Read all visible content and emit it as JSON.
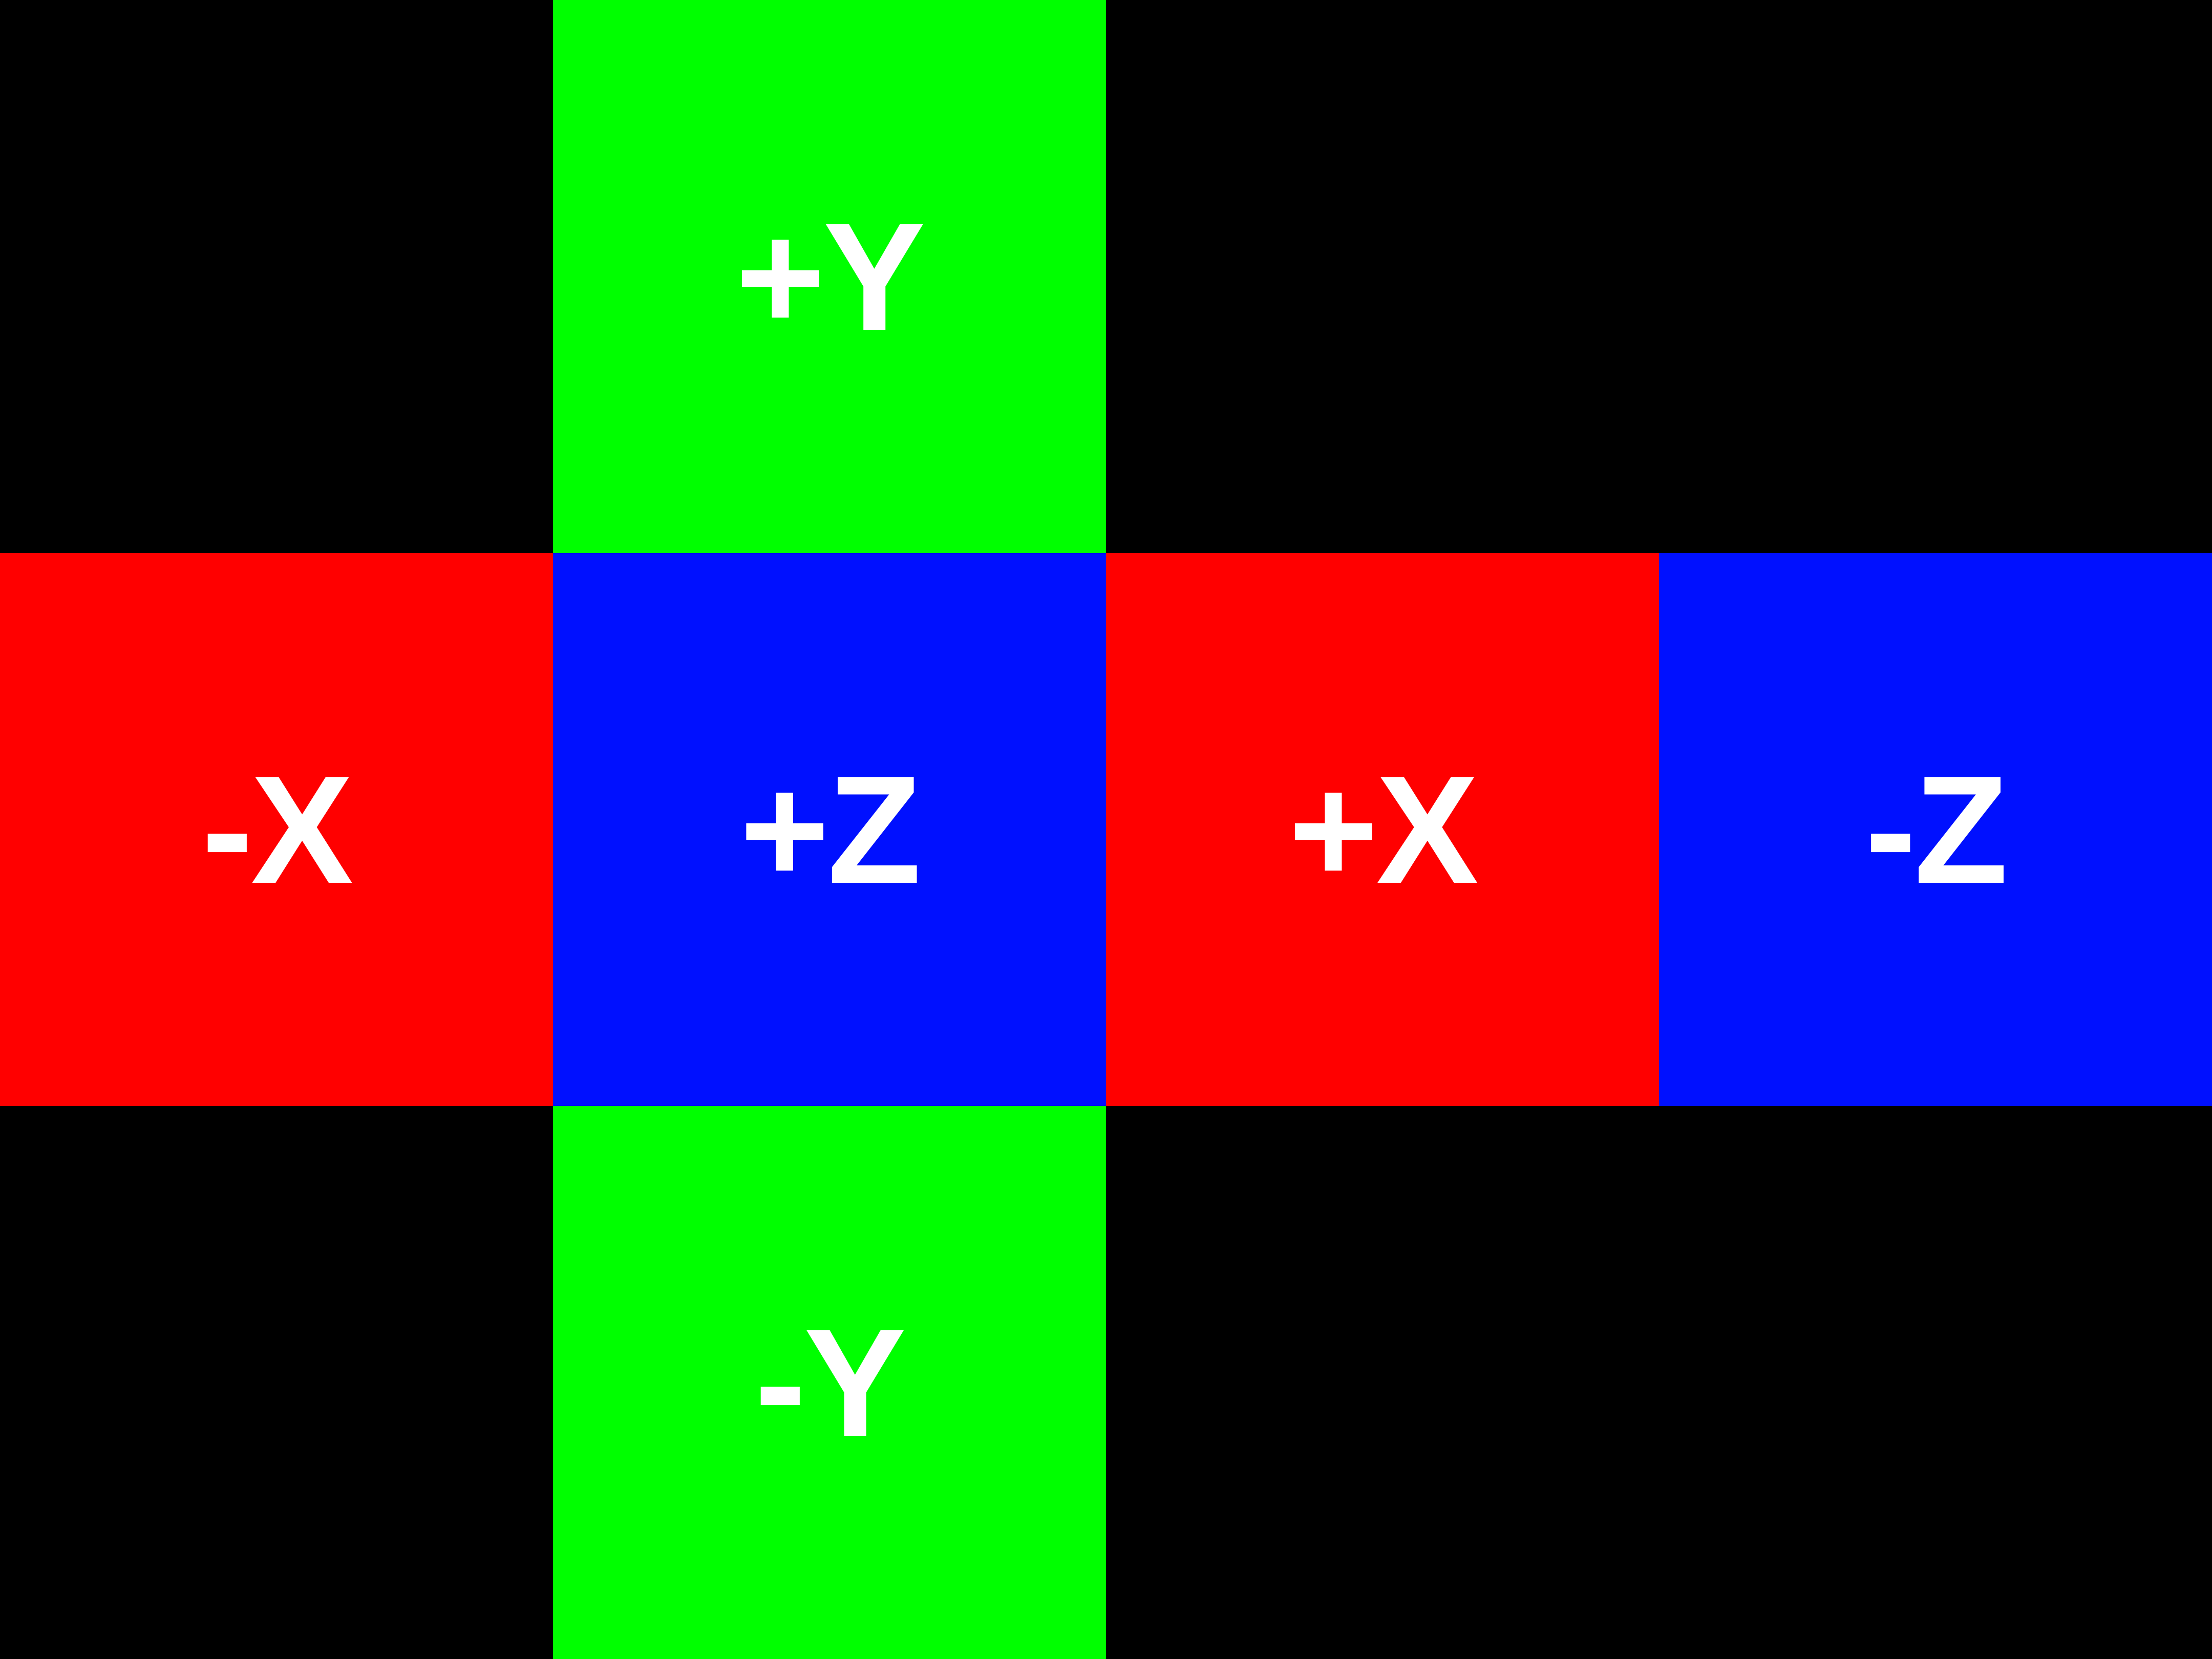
{
  "background_color": "#000000",
  "label_color": "#ffffff",
  "faces": [
    {
      "id": "pos-y",
      "label": "+Y",
      "color": "#00ff00"
    },
    {
      "id": "neg-x",
      "label": "-X",
      "color": "#ff0000"
    },
    {
      "id": "pos-z",
      "label": "+Z",
      "color": "#0010ff"
    },
    {
      "id": "pos-x",
      "label": "+X",
      "color": "#ff0000"
    },
    {
      "id": "neg-z",
      "label": "-Z",
      "color": "#0010ff"
    },
    {
      "id": "neg-y",
      "label": "-Y",
      "color": "#00ff00"
    }
  ]
}
